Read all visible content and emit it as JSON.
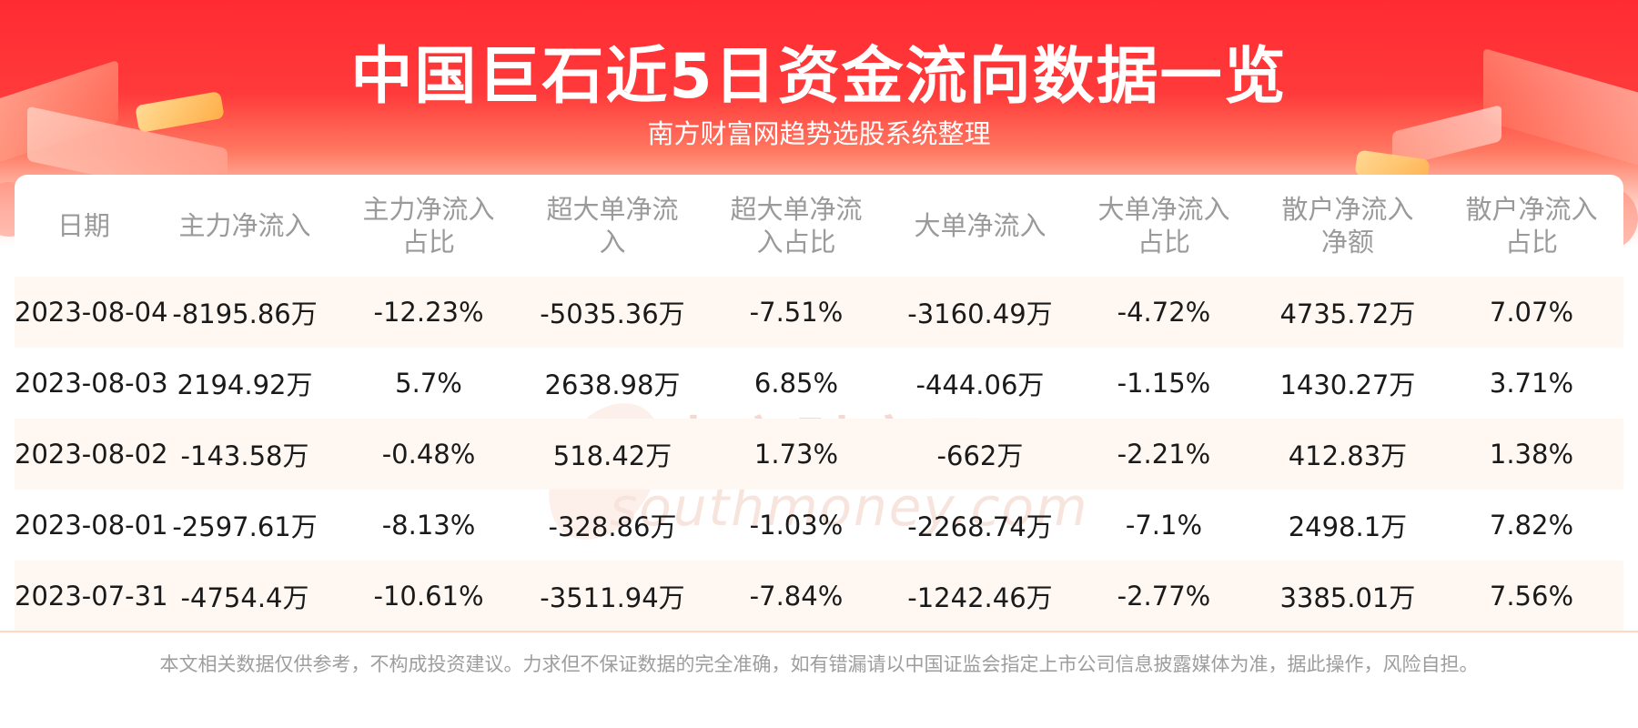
{
  "header": {
    "title": "中国巨石近5日资金流向数据一览",
    "subtitle": "南方财富网趋势选股系统整理"
  },
  "watermark": {
    "cn": "南方财富网",
    "en": "southmoney.com"
  },
  "chart_data": {
    "type": "table",
    "columns": [
      "日期",
      "主力净流入",
      "主力净流入占比",
      "超大单净流入",
      "超大单净流入占比",
      "大单净流入",
      "大单净流入占比",
      "散户净流入净额",
      "散户净流入占比"
    ],
    "rows": [
      [
        "2023-08-04",
        "-8195.86万",
        "-12.23%",
        "-5035.36万",
        "-7.51%",
        "-3160.49万",
        "-4.72%",
        "4735.72万",
        "7.07%"
      ],
      [
        "2023-08-03",
        "2194.92万",
        "5.7%",
        "2638.98万",
        "6.85%",
        "-444.06万",
        "-1.15%",
        "1430.27万",
        "3.71%"
      ],
      [
        "2023-08-02",
        "-143.58万",
        "-0.48%",
        "518.42万",
        "1.73%",
        "-662万",
        "-2.21%",
        "412.83万",
        "1.38%"
      ],
      [
        "2023-08-01",
        "-2597.61万",
        "-8.13%",
        "-328.86万",
        "-1.03%",
        "-2268.74万",
        "-7.1%",
        "2498.1万",
        "7.82%"
      ],
      [
        "2023-07-31",
        "-4754.4万",
        "-10.61%",
        "-3511.94万",
        "-7.84%",
        "-1242.46万",
        "-2.77%",
        "3385.01万",
        "7.56%"
      ]
    ]
  },
  "footer": {
    "disclaimer": "本文相关数据仅供参考，不构成投资建议。力求但不保证数据的完全准确，如有错漏请以中国证监会指定上市公司信息披露媒体为准，据此操作，风险自担。"
  },
  "colors": {
    "banner_red": "#ff2b33",
    "header_text": "#9a9a9a",
    "row_highlight": "#fff8f2",
    "body_text": "#1a1a1a"
  }
}
